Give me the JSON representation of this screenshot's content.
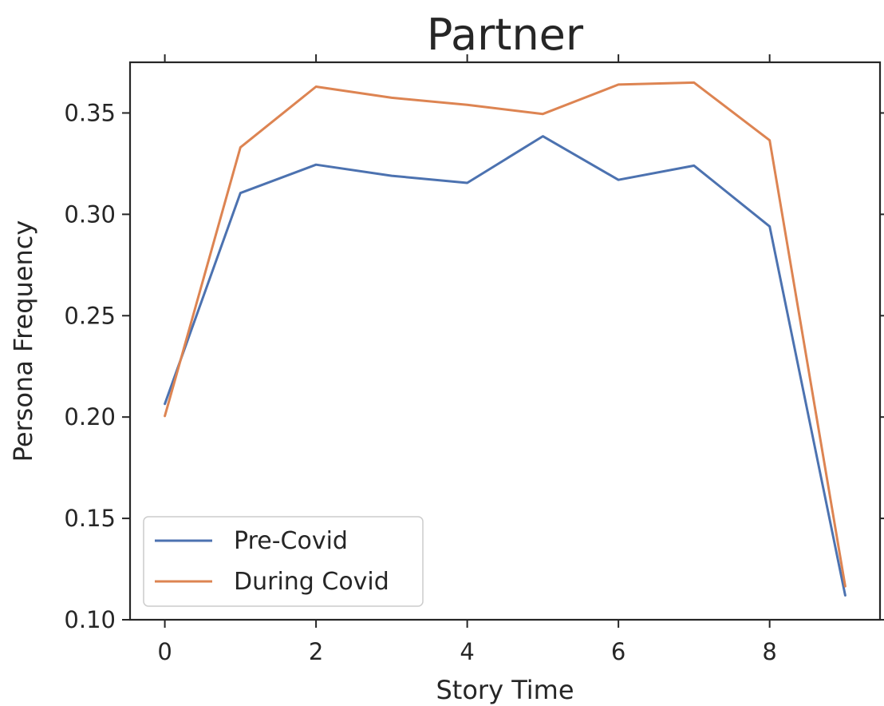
{
  "chart_data": {
    "type": "line",
    "title": "Partner",
    "xlabel": "Story Time",
    "ylabel": "Persona Frequency",
    "x": [
      0,
      1,
      2,
      3,
      4,
      5,
      6,
      7,
      8,
      9
    ],
    "xlim": [
      -0.46,
      9.46
    ],
    "ylim": [
      0.1,
      0.375
    ],
    "xticks": [
      0,
      2,
      4,
      6,
      8
    ],
    "xtick_labels": [
      "0",
      "2",
      "4",
      "6",
      "8"
    ],
    "yticks": [
      0.1,
      0.15,
      0.2,
      0.25,
      0.3,
      0.35
    ],
    "ytick_labels": [
      "0.10",
      "0.15",
      "0.20",
      "0.25",
      "0.30",
      "0.35"
    ],
    "grid": false,
    "legend_position": "bottom-left",
    "series": [
      {
        "name": "Pre-Covid",
        "color": "#4c72b0",
        "values": [
          0.2065,
          0.3105,
          0.3245,
          0.319,
          0.3155,
          0.3385,
          0.317,
          0.324,
          0.294,
          0.112
        ]
      },
      {
        "name": "During Covid",
        "color": "#dd8452",
        "values": [
          0.2005,
          0.333,
          0.363,
          0.3575,
          0.354,
          0.3495,
          0.364,
          0.365,
          0.3365,
          0.1165
        ]
      }
    ]
  }
}
